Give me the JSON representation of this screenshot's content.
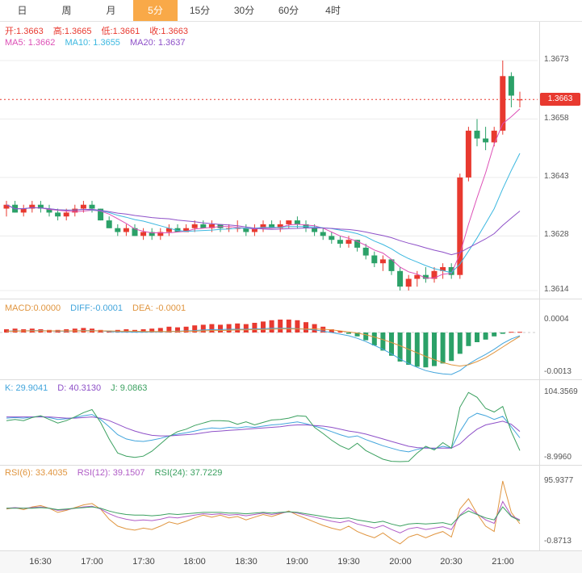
{
  "tabs": {
    "items": [
      {
        "label": "日",
        "active": false
      },
      {
        "label": "周",
        "active": false
      },
      {
        "label": "月",
        "active": false
      },
      {
        "label": "5分",
        "active": true
      },
      {
        "label": "15分",
        "active": false
      },
      {
        "label": "30分",
        "active": false
      },
      {
        "label": "60分",
        "active": false
      },
      {
        "label": "4时",
        "active": false
      }
    ]
  },
  "main_chart": {
    "ohlc": {
      "open": "开:1.3663",
      "high": "高:1.3665",
      "low": "低:1.3661",
      "close": "收:1.3663"
    },
    "ma": {
      "ma5": "MA5: 1.3662",
      "ma10": "MA10: 1.3655",
      "ma20": "MA20: 1.3637"
    },
    "axis_labels": [
      "1.3673",
      "1.3658",
      "1.3643",
      "1.3628",
      "1.3614"
    ],
    "current_price_label": "1.3663"
  },
  "macd_panel": {
    "macd": "MACD:0.0000",
    "diff": "DIFF:-0.0001",
    "dea": "DEA: -0.0001",
    "axis_labels": [
      "0.0004",
      "-0.0013"
    ]
  },
  "kdj_panel": {
    "k": "K: 29.9041",
    "d": "D: 40.3130",
    "j": "J: 9.0863",
    "axis_labels": [
      "104.3569",
      "-8.9960"
    ]
  },
  "rsi_panel": {
    "rsi6": "RSI(6): 33.4035",
    "rsi12": "RSI(12): 39.1507",
    "rsi24": "RSI(24): 37.7229",
    "axis_labels": [
      "95.9377",
      "-0.8713"
    ]
  },
  "time_axis": {
    "labels": [
      "16:30",
      "17:00",
      "17:30",
      "18:00",
      "18:30",
      "19:00",
      "19:30",
      "20:00",
      "20:30",
      "21:00"
    ]
  },
  "colors": {
    "up": "#e8392f",
    "down": "#2ba168",
    "ma5": "#dd4fb6",
    "ma10": "#3cb8e0",
    "ma20": "#8e50c8",
    "diff": "#42a5dc",
    "dea": "#e0953f",
    "k": "#42a5dc",
    "d": "#8e50c8",
    "j": "#3aa05f",
    "rsi6": "#e0953f",
    "rsi12": "#b05cc6",
    "rsi24": "#3aa05f",
    "active_tab": "#f9a948",
    "grid": "#ececec",
    "divider": "#dcdcdc"
  },
  "chart_data": {
    "type": "candlestick",
    "interval": "5分",
    "x_labels": [
      "16:30",
      "17:00",
      "17:30",
      "18:00",
      "18:30",
      "19:00",
      "19:30",
      "20:00",
      "20:30",
      "21:00"
    ],
    "x_label_indices": [
      4,
      10,
      16,
      22,
      28,
      34,
      40,
      46,
      52,
      58
    ],
    "main": {
      "ylim": [
        1.3614,
        1.3673
      ],
      "axis_values": [
        1.3673,
        1.3658,
        1.3643,
        1.3628,
        1.3614
      ],
      "current_price": 1.3663,
      "ma_periods": [
        5,
        10,
        20
      ],
      "candles": [
        [
          1.3635,
          1.3637,
          1.3633,
          1.3636
        ],
        [
          1.3636,
          1.3637,
          1.3634,
          1.3634
        ],
        [
          1.3634,
          1.3636,
          1.3633,
          1.3635
        ],
        [
          1.3635,
          1.3637,
          1.3634,
          1.3636
        ],
        [
          1.3636,
          1.3637,
          1.3634,
          1.3635
        ],
        [
          1.3635,
          1.3636,
          1.3633,
          1.3634
        ],
        [
          1.3634,
          1.3635,
          1.3632,
          1.3633
        ],
        [
          1.3633,
          1.3635,
          1.3632,
          1.3634
        ],
        [
          1.3634,
          1.3636,
          1.3633,
          1.3635
        ],
        [
          1.3635,
          1.3637,
          1.3634,
          1.3636
        ],
        [
          1.3636,
          1.3637,
          1.3634,
          1.3635
        ],
        [
          1.3635,
          1.3635,
          1.3632,
          1.3632
        ],
        [
          1.3632,
          1.3633,
          1.363,
          1.363
        ],
        [
          1.363,
          1.3631,
          1.3628,
          1.3629
        ],
        [
          1.3629,
          1.3631,
          1.3628,
          1.363
        ],
        [
          1.363,
          1.3631,
          1.3628,
          1.3628
        ],
        [
          1.3628,
          1.363,
          1.3627,
          1.3629
        ],
        [
          1.3629,
          1.363,
          1.3627,
          1.3628
        ],
        [
          1.3628,
          1.363,
          1.3627,
          1.3629
        ],
        [
          1.3629,
          1.3631,
          1.3628,
          1.363
        ],
        [
          1.363,
          1.3631,
          1.3629,
          1.3629
        ],
        [
          1.3629,
          1.3631,
          1.3629,
          1.363
        ],
        [
          1.363,
          1.3632,
          1.3629,
          1.3631
        ],
        [
          1.3631,
          1.3632,
          1.363,
          1.363
        ],
        [
          1.363,
          1.3632,
          1.3629,
          1.3631
        ],
        [
          1.3631,
          1.3631,
          1.3629,
          1.363
        ],
        [
          1.363,
          1.3631,
          1.3629,
          1.363
        ],
        [
          1.363,
          1.3632,
          1.3629,
          1.363
        ],
        [
          1.363,
          1.3631,
          1.3628,
          1.3629
        ],
        [
          1.3629,
          1.3631,
          1.3628,
          1.363
        ],
        [
          1.363,
          1.3632,
          1.3629,
          1.3631
        ],
        [
          1.3631,
          1.3632,
          1.363,
          1.363
        ],
        [
          1.363,
          1.3632,
          1.3629,
          1.3631
        ],
        [
          1.3631,
          1.3632,
          1.363,
          1.3632
        ],
        [
          1.3632,
          1.3633,
          1.363,
          1.3631
        ],
        [
          1.3631,
          1.3632,
          1.3629,
          1.363
        ],
        [
          1.363,
          1.3631,
          1.3628,
          1.3629
        ],
        [
          1.3629,
          1.363,
          1.3627,
          1.3628
        ],
        [
          1.3628,
          1.3629,
          1.3626,
          1.3627
        ],
        [
          1.3627,
          1.3628,
          1.3625,
          1.3626
        ],
        [
          1.3626,
          1.3628,
          1.3625,
          1.3627
        ],
        [
          1.3627,
          1.3627,
          1.3624,
          1.3625
        ],
        [
          1.3625,
          1.3626,
          1.3622,
          1.3623
        ],
        [
          1.3623,
          1.3624,
          1.362,
          1.3621
        ],
        [
          1.3621,
          1.3623,
          1.3619,
          1.3622
        ],
        [
          1.3622,
          1.3622,
          1.3618,
          1.3619
        ],
        [
          1.3619,
          1.362,
          1.3614,
          1.3615
        ],
        [
          1.3615,
          1.3618,
          1.3614,
          1.3617
        ],
        [
          1.3617,
          1.3619,
          1.3615,
          1.3618
        ],
        [
          1.3618,
          1.362,
          1.3616,
          1.3617
        ],
        [
          1.3617,
          1.362,
          1.3616,
          1.3619
        ],
        [
          1.3619,
          1.3621,
          1.3617,
          1.362
        ],
        [
          1.362,
          1.3621,
          1.3617,
          1.3618
        ],
        [
          1.3618,
          1.3644,
          1.3617,
          1.3643
        ],
        [
          1.3643,
          1.3656,
          1.3642,
          1.3655
        ],
        [
          1.3655,
          1.3658,
          1.3651,
          1.3653
        ],
        [
          1.3653,
          1.3656,
          1.365,
          1.3652
        ],
        [
          1.3652,
          1.3656,
          1.3651,
          1.3655
        ],
        [
          1.3655,
          1.3673,
          1.3654,
          1.3669
        ],
        [
          1.3669,
          1.367,
          1.3661,
          1.3664
        ],
        [
          1.3663,
          1.3665,
          1.3661,
          1.3663
        ]
      ]
    },
    "macd": {
      "ylim": [
        -0.0013,
        0.0004
      ],
      "hist": [
        0.0001,
        0.00012,
        0.0001,
        0.00012,
        0.0001,
        8e-05,
        8e-05,
        0.0001,
        0.00012,
        0.00014,
        0.00012,
        8e-05,
        6e-05,
        8e-05,
        0.0001,
        8e-05,
        0.0001,
        0.00012,
        0.00014,
        0.00018,
        0.00016,
        0.00018,
        0.00022,
        0.00024,
        0.00026,
        0.00024,
        0.00026,
        0.00028,
        0.00026,
        0.0003,
        0.00034,
        0.00038,
        0.0004,
        0.0004,
        0.00038,
        0.00032,
        0.00026,
        0.00018,
        0.0001,
        4e-05,
        -4e-05,
        -0.00012,
        -0.00024,
        -0.0004,
        -0.00056,
        -0.00072,
        -0.0009,
        -0.001,
        -0.00106,
        -0.00108,
        -0.00104,
        -0.00096,
        -0.00088,
        -0.00066,
        -0.00042,
        -0.0003,
        -0.00022,
        -0.00012,
        -4e-05,
        2e-05,
        2e-05
      ],
      "diff": [
        4e-05,
        5e-05,
        5e-05,
        6e-05,
        6e-05,
        5e-05,
        4e-05,
        4e-05,
        5e-05,
        6e-05,
        6e-05,
        5e-05,
        3e-05,
        2e-05,
        2e-05,
        1e-05,
        1e-05,
        2e-05,
        2e-05,
        3e-05,
        4e-05,
        5e-05,
        6e-05,
        8e-05,
        9e-05,
        9e-05,
        0.0001,
        0.0001,
        0.0001,
        0.00011,
        0.00012,
        0.00013,
        0.00013,
        0.00013,
        0.00012,
        0.0001,
        8e-05,
        4e-05,
        0,
        -5e-05,
        -0.0001,
        -0.00018,
        -0.00028,
        -0.0004,
        -0.00052,
        -0.00066,
        -0.00082,
        -0.00096,
        -0.00108,
        -0.00118,
        -0.00124,
        -0.00128,
        -0.0013,
        -0.00118,
        -0.00098,
        -0.00082,
        -0.00068,
        -0.00052,
        -0.00034,
        -0.0002,
        -0.0001
      ],
      "dea": [
        4e-05,
        4e-05,
        5e-05,
        5e-05,
        5e-05,
        5e-05,
        5e-05,
        5e-05,
        5e-05,
        5e-05,
        5e-05,
        5e-05,
        5e-05,
        4e-05,
        4e-05,
        4e-05,
        3e-05,
        3e-05,
        3e-05,
        3e-05,
        3e-05,
        4e-05,
        4e-05,
        5e-05,
        6e-05,
        6e-05,
        7e-05,
        8e-05,
        8e-05,
        9e-05,
        9e-05,
        0.0001,
        0.00011,
        0.00011,
        0.00011,
        0.00011,
        0.00011,
        0.0001,
        8e-05,
        5e-05,
        2e-05,
        -2e-05,
        -7e-05,
        -0.00014,
        -0.00022,
        -0.00031,
        -0.00041,
        -0.00052,
        -0.00063,
        -0.00074,
        -0.00084,
        -0.00093,
        -0.001,
        -0.00104,
        -0.001,
        -0.0009,
        -0.00078,
        -0.00062,
        -0.00045,
        -0.00028,
        -0.00012
      ]
    },
    "kdj": {
      "ylim": [
        -8.996,
        104.3569
      ],
      "k": [
        62,
        63,
        62,
        64,
        65,
        63,
        60,
        61,
        63,
        66,
        68,
        60,
        48,
        35,
        28,
        25,
        24,
        26,
        29,
        33,
        36,
        38,
        41,
        44,
        46,
        45,
        47,
        46,
        48,
        47,
        49,
        51,
        52,
        54,
        56,
        53,
        49,
        45,
        40,
        35,
        31,
        33,
        27,
        22,
        17,
        13,
        9,
        7,
        11,
        14,
        12,
        16,
        13,
        40,
        62,
        70,
        66,
        60,
        65,
        48,
        29.9
      ],
      "d": [
        64,
        64,
        64,
        64,
        64,
        64,
        63,
        62,
        62,
        63,
        64,
        62,
        58,
        52,
        46,
        41,
        37,
        34,
        33,
        33,
        34,
        35,
        36,
        38,
        40,
        41,
        42,
        43,
        44,
        45,
        46,
        47,
        48,
        50,
        51,
        51,
        50,
        49,
        47,
        44,
        41,
        39,
        36,
        32,
        28,
        24,
        20,
        16,
        14,
        13,
        13,
        13,
        13,
        20,
        33,
        44,
        51,
        54,
        57,
        52,
        40.3
      ],
      "j": [
        58,
        60,
        58,
        63,
        66,
        60,
        54,
        58,
        64,
        71,
        76,
        55,
        28,
        5,
        0,
        -2,
        0,
        8,
        20,
        32,
        40,
        44,
        50,
        54,
        58,
        58,
        57,
        52,
        56,
        51,
        55,
        59,
        60,
        62,
        66,
        65,
        47,
        37,
        26,
        17,
        11,
        21,
        9,
        2,
        -5,
        -8.5,
        -8.99,
        -8.5,
        5,
        16,
        10,
        22,
        13,
        80,
        104,
        96,
        78,
        72,
        81,
        40,
        9.09
      ]
    },
    "rsi": {
      "ylim": [
        -0.8713,
        95.9377
      ],
      "rsi6": [
        55,
        57,
        54,
        58,
        60,
        56,
        50,
        53,
        57,
        61,
        63,
        55,
        40,
        30,
        26,
        24,
        27,
        25,
        30,
        36,
        33,
        37,
        42,
        46,
        43,
        46,
        42,
        44,
        39,
        43,
        47,
        44,
        48,
        52,
        46,
        41,
        36,
        31,
        27,
        24,
        30,
        22,
        17,
        13,
        20,
        11,
        4,
        14,
        18,
        13,
        18,
        22,
        14,
        55,
        70,
        48,
        30,
        22,
        95.9,
        50,
        33.4
      ],
      "rsi12": [
        56,
        57,
        56,
        57,
        58,
        56,
        53,
        54,
        56,
        58,
        59,
        55,
        48,
        43,
        40,
        38,
        39,
        38,
        40,
        43,
        42,
        44,
        46,
        48,
        47,
        48,
        46,
        47,
        45,
        47,
        49,
        47,
        49,
        51,
        49,
        46,
        43,
        40,
        37,
        35,
        38,
        33,
        30,
        27,
        31,
        25,
        20,
        26,
        28,
        25,
        27,
        29,
        25,
        46,
        57,
        48,
        39,
        34,
        66,
        45,
        39.15
      ],
      "rsi24": [
        56,
        56,
        56,
        56,
        57,
        56,
        54,
        55,
        56,
        57,
        58,
        56,
        52,
        49,
        47,
        46,
        46,
        45,
        46,
        48,
        47,
        48,
        49,
        50,
        50,
        50,
        49,
        49,
        48,
        49,
        50,
        49,
        50,
        51,
        50,
        48,
        46,
        44,
        42,
        41,
        42,
        39,
        37,
        35,
        37,
        33,
        30,
        33,
        34,
        33,
        34,
        35,
        32,
        45,
        52,
        47,
        42,
        39,
        58,
        44,
        37.72
      ]
    }
  }
}
